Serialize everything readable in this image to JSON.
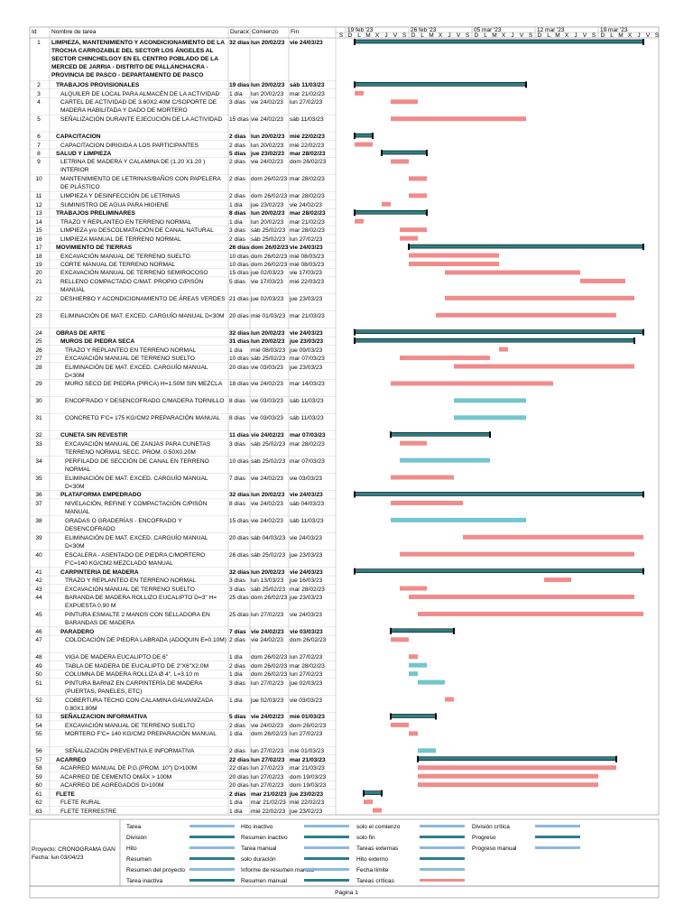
{
  "chart_data": {
    "type": "gantt",
    "columns": [
      "Id",
      "Nombre de tarea",
      "Duración",
      "Comienzo",
      "Fin"
    ],
    "week_labels": [
      "19 feb '23",
      "26 feb '23",
      "05 mar '23",
      "12 mar '23",
      "19 mar '23"
    ],
    "day_letters": [
      "D",
      "L",
      "M",
      "X",
      "J",
      "V",
      "S"
    ],
    "summary_color": "#2e7f86",
    "task_color": "#72c6cc",
    "critical_color": "#f08c8c",
    "tasks": [
      {
        "id": 1,
        "name": "LIMPIEZA, MANTENIMIENTO Y ACONDICIONAMIENTO DE LA TROCHA CARROZABLE DEL SECTOR LOS ÁNGELES AL SECTOR CHINCHELGOY EN EL CENTRO POBLADO DE LA MERCED DE JARRIA - DISTRITO DE PALLANCHACRA - PROVINCIA DE PASCO - DEPARTAMENTO DE PASCO",
        "duration": "32 días",
        "start": "lun 20/02/23",
        "finish": "vie 24/03/23",
        "summary": true,
        "level": 0,
        "critical": false
      },
      {
        "id": 2,
        "name": "TRABAJOS PROVISIONALES",
        "duration": "19 días",
        "start": "lun 20/02/23",
        "finish": "sáb 11/03/23",
        "summary": true,
        "level": 1,
        "critical": false
      },
      {
        "id": 3,
        "name": "ALQUILER DE LOCAL PARA ALMACÉN DE LA ACTIVIDAD",
        "duration": "1 día",
        "start": "lun 20/02/23",
        "finish": "mar 21/02/23",
        "summary": false,
        "level": 2,
        "critical": true
      },
      {
        "id": 4,
        "name": "CARTEL DE ACTIVIDAD DE 3.60X2.40M C/SOPORTE DE MADERA HABILITADA Y DADO DE MORTERO",
        "duration": "3 días",
        "start": "vie 24/02/23",
        "finish": "lun 27/02/23",
        "summary": false,
        "level": 2,
        "critical": true
      },
      {
        "id": 5,
        "name": "SEÑALIZACIÓN DURANTE EJECUCIÓN DE LA ACTIVIDAD",
        "duration": "15 días",
        "start": "vie 24/02/23",
        "finish": "sáb 11/03/23",
        "summary": false,
        "level": 2,
        "critical": true
      },
      {
        "id": 6,
        "name": "CAPACITACION",
        "duration": "2 días",
        "start": "lun 20/02/23",
        "finish": "mié 22/02/23",
        "summary": true,
        "level": 1,
        "critical": false
      },
      {
        "id": 7,
        "name": "CAPACITACION DIRIGIDA A LOS PARTICIPANTES",
        "duration": "2 días",
        "start": "lun 20/02/23",
        "finish": "mié 22/02/23",
        "summary": false,
        "level": 2,
        "critical": true
      },
      {
        "id": 8,
        "name": "SALUD Y LIMPIEZA",
        "duration": "5 días",
        "start": "jue 23/02/23",
        "finish": "mar 28/02/23",
        "summary": true,
        "level": 1,
        "critical": false
      },
      {
        "id": 9,
        "name": "LETRINA DE MADERA Y CALAMINA DE (1.20 X1.20 ) INTERIOR",
        "duration": "2 días",
        "start": "vie 24/02/23",
        "finish": "dom 26/02/23",
        "summary": false,
        "level": 2,
        "critical": true
      },
      {
        "id": 10,
        "name": "MANTENIMIENTO DE LETRINAS/BAÑOS CON PAPELERA DE PLÁSTICO",
        "duration": "2 días",
        "start": "dom 26/02/23",
        "finish": "mar 28/02/23",
        "summary": false,
        "level": 2,
        "critical": true
      },
      {
        "id": 11,
        "name": "LIMPIEZA Y DESINFECCIÓN DE LETRINAS",
        "duration": "2 días",
        "start": "dom 26/02/23",
        "finish": "mar 28/02/23",
        "summary": false,
        "level": 2,
        "critical": true
      },
      {
        "id": 12,
        "name": "SUMINISTRO DE AGUA PARA HIGIENE",
        "duration": "1 día",
        "start": "jue 23/02/23",
        "finish": "vie 24/02/23",
        "summary": false,
        "level": 2,
        "critical": true
      },
      {
        "id": 13,
        "name": "TRABAJOS PRELIMINARES",
        "duration": "8 días",
        "start": "lun 20/02/23",
        "finish": "mar 28/02/23",
        "summary": true,
        "level": 1,
        "critical": false
      },
      {
        "id": 14,
        "name": "TRAZO Y REPLANTEO EN TERRENO NORMAL",
        "duration": "1 día",
        "start": "lun 20/02/23",
        "finish": "mar 21/02/23",
        "summary": false,
        "level": 2,
        "critical": true
      },
      {
        "id": 15,
        "name": "LIMPIEZA y/o DESCOLMATACIÓN DE CANAL NATURAL",
        "duration": "3 días",
        "start": "sáb 25/02/23",
        "finish": "mar 28/02/23",
        "summary": false,
        "level": 2,
        "critical": true
      },
      {
        "id": 16,
        "name": "LIMPIEZA MANUAL DE TERRENO NORMAL",
        "duration": "2 días",
        "start": "sáb 25/02/23",
        "finish": "lun 27/02/23",
        "summary": false,
        "level": 2,
        "critical": true
      },
      {
        "id": 17,
        "name": "MOVIMIENTO DE TIERRAS",
        "duration": "26 días",
        "start": "dom 26/02/23",
        "finish": "vie 24/03/23",
        "summary": true,
        "level": 1,
        "critical": false
      },
      {
        "id": 18,
        "name": "EXCAVACIÓN MANUAL DE TERRENO SUELTO",
        "duration": "10 días",
        "start": "dom 26/02/23",
        "finish": "mié 08/03/23",
        "summary": false,
        "level": 2,
        "critical": true
      },
      {
        "id": 19,
        "name": "CORTE MANUAL DE TERRENO NORMAL",
        "duration": "10 días",
        "start": "dom 26/02/23",
        "finish": "mié 08/03/23",
        "summary": false,
        "level": 2,
        "critical": true
      },
      {
        "id": 20,
        "name": "EXCAVACIÓN MANUAL DE TERRENO SEMIROCOSO",
        "duration": "15 días",
        "start": "jue 02/03/23",
        "finish": "vie 17/03/23",
        "summary": false,
        "level": 2,
        "critical": true
      },
      {
        "id": 21,
        "name": "RELLENO COMPACTADO C/MAT. PROPIO C/PISÓN MANUAL",
        "duration": "5 días",
        "start": "vie 17/03/23",
        "finish": "mié 22/03/23",
        "summary": false,
        "level": 2,
        "critical": true
      },
      {
        "id": 22,
        "name": "DESHIERBO Y ACONDICIONAMIENTO DE ÁREAS VERDES",
        "duration": "21 días",
        "start": "jue 02/03/23",
        "finish": "jue 23/03/23",
        "summary": false,
        "level": 2,
        "critical": true
      },
      {
        "id": 23,
        "name": "ELIMINACIÓN DE MAT. EXCED. CARGUÍO MANUAL D<30M",
        "duration": "20 días",
        "start": "mié 01/03/23",
        "finish": "mar 21/03/23",
        "summary": false,
        "level": 2,
        "critical": true
      },
      {
        "id": 24,
        "name": "OBRAS DE ARTE",
        "duration": "32 días",
        "start": "lun 20/02/23",
        "finish": "vie 24/03/23",
        "summary": true,
        "level": 1,
        "critical": false
      },
      {
        "id": 25,
        "name": "MUROS DE PIEDRA SECA",
        "duration": "31 días",
        "start": "lun 20/02/23",
        "finish": "jue 23/03/23",
        "summary": true,
        "level": 2,
        "critical": false
      },
      {
        "id": 26,
        "name": "TRAZO Y REPLANTEO EN TERRENO NORMAL",
        "duration": "1 día",
        "start": "mié 08/03/23",
        "finish": "jue 09/03/23",
        "summary": false,
        "level": 3,
        "critical": true
      },
      {
        "id": 27,
        "name": "EXCAVACIÓN MANUAL DE TERRENO SUELTO",
        "duration": "10 días",
        "start": "sáb 25/02/23",
        "finish": "mar 07/03/23",
        "summary": false,
        "level": 3,
        "critical": true
      },
      {
        "id": 28,
        "name": "ELIMINACIÓN DE MAT. EXCED. CARGUÍO MANUAL D<30M",
        "duration": "20 días",
        "start": "vie 03/03/23",
        "finish": "jue 23/03/23",
        "summary": false,
        "level": 3,
        "critical": true
      },
      {
        "id": 29,
        "name": "MURO SECO DE PIEDRA (PIRCA) H=1.50M SIN MEZCLA",
        "duration": "18 días",
        "start": "vie 24/02/23",
        "finish": "mar 14/03/23",
        "summary": false,
        "level": 3,
        "critical": true
      },
      {
        "id": 30,
        "name": "ENCOFRADO Y DESENCOFRADO C/MADERA TORNILLO",
        "duration": "8 días",
        "start": "vie 03/03/23",
        "finish": "sáb 11/03/23",
        "summary": false,
        "level": 3,
        "critical": false
      },
      {
        "id": 31,
        "name": "CONCRETO F'C= 175 KG/CM2 PREPARACIÓN MANUAL",
        "duration": "8 días",
        "start": "vie 03/03/23",
        "finish": "sáb 11/03/23",
        "summary": false,
        "level": 3,
        "critical": false
      },
      {
        "id": 32,
        "name": "CUNETA SIN REVESTIR",
        "duration": "11 días",
        "start": "vie 24/02/23",
        "finish": "mar 07/03/23",
        "summary": true,
        "level": 2,
        "critical": false
      },
      {
        "id": 33,
        "name": "EXCAVACIÓN MANUAL DE ZANJAS PARA CUNETAS TERRENO NORMAL SECC. PROM. 0.50X0.20M",
        "duration": "3 días",
        "start": "sáb 25/02/23",
        "finish": "mar 28/02/23",
        "summary": false,
        "level": 3,
        "critical": true
      },
      {
        "id": 34,
        "name": "PERFILADO DE SECCIÓN DE CANAL EN TERRENO NORMAL",
        "duration": "10 días",
        "start": "sáb 25/02/23",
        "finish": "mar 07/03/23",
        "summary": false,
        "level": 3,
        "critical": false
      },
      {
        "id": 35,
        "name": "ELIMINACIÓN DE MAT. EXCED. CARGUÍO MANUAL D<30M",
        "duration": "7 días",
        "start": "vie 24/02/23",
        "finish": "vie 03/03/23",
        "summary": false,
        "level": 3,
        "critical": true
      },
      {
        "id": 36,
        "name": "PLATAFORMA EMPEDRADO",
        "duration": "32 días",
        "start": "lun 20/02/23",
        "finish": "vie 24/03/23",
        "summary": true,
        "level": 2,
        "critical": false
      },
      {
        "id": 37,
        "name": "NIVELACIÓN, REFINE Y COMPACTACIÓN C/PISÓN MANUAL",
        "duration": "8 días",
        "start": "vie 24/02/23",
        "finish": "sáb 04/03/23",
        "summary": false,
        "level": 3,
        "critical": true
      },
      {
        "id": 38,
        "name": "GRADAS O GRADERÍAS - ENCOFRADO Y DESENCOFRADO",
        "duration": "15 días",
        "start": "vie 24/02/23",
        "finish": "sáb 11/03/23",
        "summary": false,
        "level": 3,
        "critical": false
      },
      {
        "id": 39,
        "name": "ELIMINACIÓN DE MAT. EXCED. CARGUÍO MANUAL D<30M",
        "duration": "20 días",
        "start": "sáb 04/03/23",
        "finish": "vie 24/03/23",
        "summary": false,
        "level": 3,
        "critical": true
      },
      {
        "id": 40,
        "name": "ESCALERA - ASENTADO DE PIEDRA C/MORTERO F'C=140 KG/CM2 MEZCLADO MANUAL",
        "duration": "26 días",
        "start": "sáb 25/02/23",
        "finish": "jue 23/03/23",
        "summary": false,
        "level": 3,
        "critical": true
      },
      {
        "id": 41,
        "name": "CARPINTERIA DE MADERA",
        "duration": "32 días",
        "start": "lun 20/02/23",
        "finish": "vie 24/03/23",
        "summary": true,
        "level": 2,
        "critical": false
      },
      {
        "id": 42,
        "name": "TRAZO Y REPLANTEO EN TERRENO NORMAL",
        "duration": "3 días",
        "start": "lun 13/03/23",
        "finish": "jue 16/03/23",
        "summary": false,
        "level": 3,
        "critical": true
      },
      {
        "id": 43,
        "name": "EXCAVACIÓN MANUAL DE TERRENO SUELTO",
        "duration": "3 días",
        "start": "sáb 25/02/23",
        "finish": "mar 28/02/23",
        "summary": false,
        "level": 3,
        "critical": true
      },
      {
        "id": 44,
        "name": "BARANDA DE MADERA ROLLIZO EUCALIPTO D=3\" H= EXPUESTA 0.90 M",
        "duration": "25 días",
        "start": "dom 26/02/23",
        "finish": "jue 23/03/23",
        "summary": false,
        "level": 3,
        "critical": true
      },
      {
        "id": 45,
        "name": "PINTURA ESMALTE 2 MANOS CON SELLADORA EN BARANDAS DE MADERA",
        "duration": "25 días",
        "start": "lun 27/02/23",
        "finish": "vie 24/03/23",
        "summary": false,
        "level": 3,
        "critical": true
      },
      {
        "id": 46,
        "name": "PARADERO",
        "duration": "7 días",
        "start": "vie 24/02/23",
        "finish": "vie 03/03/23",
        "summary": true,
        "level": 2,
        "critical": false
      },
      {
        "id": 47,
        "name": "COLOCACIÓN DE PIEDRA LABRADA (ADOQUIN E=0.10M)",
        "duration": "2 días",
        "start": "vie 24/02/23",
        "finish": "dom 26/02/23",
        "summary": false,
        "level": 3,
        "critical": true
      },
      {
        "id": 48,
        "name": "VIGA DE MADERA EUCALIPTO DE 6\"",
        "duration": "1 día",
        "start": "dom 26/02/23",
        "finish": "lun 27/02/23",
        "summary": false,
        "level": 3,
        "critical": true
      },
      {
        "id": 49,
        "name": "TABLA DE MADERA DE EUCALIPTO DE 2\"X6\"X2.0M",
        "duration": "2 días",
        "start": "dom 26/02/23",
        "finish": "mar 28/02/23",
        "summary": false,
        "level": 3,
        "critical": false
      },
      {
        "id": 50,
        "name": "COLUMNA DE MADERA ROLLIZA Ø 4\", L=3.10 m",
        "duration": "1 día",
        "start": "dom 26/02/23",
        "finish": "lun 27/02/23",
        "summary": false,
        "level": 3,
        "critical": false
      },
      {
        "id": 51,
        "name": "PINTURA BARNIZ EN CARPINTERÍA DE MADERA (PUERTAS, PANELES, ETC)",
        "duration": "3 días",
        "start": "lun 27/02/23",
        "finish": "jue 02/03/23",
        "summary": false,
        "level": 3,
        "critical": false
      },
      {
        "id": 52,
        "name": "COBERTURA TECHO CON CALAMINA GALVANIZADA 0.80X1.80M",
        "duration": "1 día",
        "start": "jue 02/03/23",
        "finish": "vie 03/03/23",
        "summary": false,
        "level": 3,
        "critical": true
      },
      {
        "id": 53,
        "name": "SEÑALIZACION INFORMATIVA",
        "duration": "5 días",
        "start": "vie 24/02/23",
        "finish": "mié 01/03/23",
        "summary": true,
        "level": 2,
        "critical": false
      },
      {
        "id": 54,
        "name": "EXCAVACIÓN MANUAL DE TERRENO SUELTO",
        "duration": "2 días",
        "start": "vie 24/02/23",
        "finish": "dom 26/02/23",
        "summary": false,
        "level": 3,
        "critical": true
      },
      {
        "id": 55,
        "name": "MORTERO F'C= 140 KG/CM2 PREPARACIÓN MANUAL",
        "duration": "1 día",
        "start": "dom 26/02/23",
        "finish": "lun 27/02/23",
        "summary": false,
        "level": 3,
        "critical": true
      },
      {
        "id": 56,
        "name": "SEÑALIZACIÓN PREVENTIVA E INFORMATIVA",
        "duration": "2 días",
        "start": "lun 27/02/23",
        "finish": "mié 01/03/23",
        "summary": false,
        "level": 3,
        "critical": false
      },
      {
        "id": 57,
        "name": "ACARREO",
        "duration": "22 días",
        "start": "lun 27/02/23",
        "finish": "mar 21/03/23",
        "summary": true,
        "level": 1,
        "critical": false
      },
      {
        "id": 58,
        "name": "ACARREO MANUAL DE P.G.(PROM. 10\") D>100M",
        "duration": "22 días",
        "start": "lun 27/02/23",
        "finish": "mar 21/03/23",
        "summary": false,
        "level": 2,
        "critical": true
      },
      {
        "id": 59,
        "name": "ACARREO DE CEMENTO DMÁX > 100M",
        "duration": "20 días",
        "start": "lun 27/02/23",
        "finish": "dom 19/03/23",
        "summary": false,
        "level": 2,
        "critical": true
      },
      {
        "id": 60,
        "name": "ACARREO DE AGREGADOS D>100M",
        "duration": "20 días",
        "start": "lun 27/02/23",
        "finish": "dom 19/03/23",
        "summary": false,
        "level": 2,
        "critical": true
      },
      {
        "id": 61,
        "name": "FLETE",
        "duration": "2 días",
        "start": "mar 21/02/23",
        "finish": "jue 23/02/23",
        "summary": true,
        "level": 1,
        "critical": false
      },
      {
        "id": 62,
        "name": "FLETE RURAL",
        "duration": "1 día",
        "start": "mar 21/02/23",
        "finish": "mié 22/02/23",
        "summary": false,
        "level": 2,
        "critical": true
      },
      {
        "id": 63,
        "name": "FLETE TERRESTRE",
        "duration": "1 día",
        "start": "mié 22/02/23",
        "finish": "jue 23/02/23",
        "summary": false,
        "level": 2,
        "critical": true
      }
    ],
    "project": "Proyecto: CRONOGRAMA GAN",
    "date": "Fecha: lun 03/04/23",
    "legend": [
      [
        "Tarea",
        "División",
        "Hito",
        "Resumen",
        "Resumen del proyecto",
        "Tarea inactiva"
      ],
      [
        "Hito inactivo",
        "Resumen inactivo",
        "Tarea manual",
        "solo duración",
        "Informe de resumen manual",
        "Resumen manual"
      ],
      [
        "solo el comienzo",
        "solo fin",
        "Tareas externas",
        "Hito externo",
        "Fecha límite",
        "Tareas críticas"
      ],
      [
        "División crítica",
        "Progreso",
        "Progreso manual"
      ]
    ],
    "footer": "Página 1"
  }
}
